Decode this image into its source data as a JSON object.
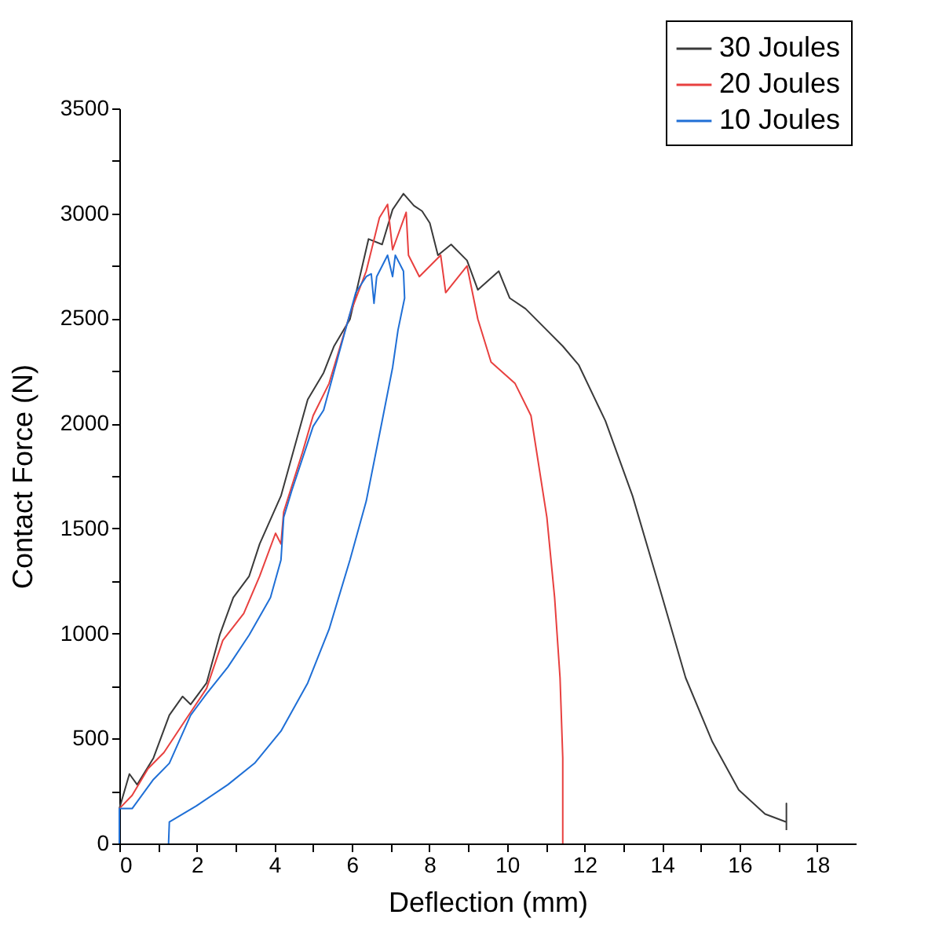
{
  "chart_data": {
    "type": "line",
    "xlabel": "Deflection (mm)",
    "ylabel": "Contact Force (N)",
    "xlim": [
      0,
      19
    ],
    "ylim": [
      0,
      3500
    ],
    "xticks": [
      0,
      {
        "value": 1,
        "label": null
      },
      2,
      {
        "value": 3,
        "label": null
      },
      4,
      {
        "value": 5,
        "label": null
      },
      6,
      {
        "value": 7,
        "label": null
      },
      8,
      {
        "value": 9,
        "label": null
      },
      10,
      {
        "value": 11,
        "label": null
      },
      12,
      {
        "value": 13,
        "label": null
      },
      14,
      {
        "value": 15,
        "label": null
      },
      16,
      {
        "value": 17,
        "label": null
      },
      18
    ],
    "yticks": [
      0,
      {
        "value": 250,
        "label": null
      },
      500,
      {
        "value": 750,
        "label": null
      },
      1000,
      {
        "value": 1250,
        "label": null
      },
      1500,
      {
        "value": 1750,
        "label": null
      },
      2000,
      {
        "value": 2250,
        "label": null
      },
      2500,
      {
        "value": 2750,
        "label": null
      },
      3000,
      {
        "value": 3250,
        "label": null
      },
      3500
    ],
    "grid": false,
    "legend": "top right",
    "marker": "none",
    "line_style": "solid",
    "series": [
      {
        "name": "30 Joules",
        "color": "#3a3a3a",
        "x": [
          0,
          0,
          0.26,
          0.46,
          0.88,
          1.29,
          1.63,
          1.84,
          2.25,
          2.59,
          2.94,
          3.35,
          3.62,
          4.17,
          4.86,
          5.27,
          5.54,
          5.95,
          6.43,
          6.78,
          7.05,
          7.33,
          7.6,
          7.81,
          8.01,
          8.22,
          8.56,
          8.97,
          9.25,
          9.79,
          10.07,
          10.48,
          11.03,
          11.44,
          11.85,
          12.54,
          13.24,
          13.93,
          14.61,
          15.3,
          15.98,
          16.66,
          17.21,
          17.21,
          17.21
        ],
        "values": [
          0,
          166,
          331,
          280,
          407,
          611,
          700,
          662,
          764,
          993,
          1171,
          1273,
          1426,
          1655,
          2114,
          2241,
          2368,
          2496,
          2878,
          2852,
          3018,
          3094,
          3037,
          3011,
          2954,
          2801,
          2852,
          2776,
          2636,
          2725,
          2597,
          2546,
          2444,
          2368,
          2279,
          2012,
          1655,
          1222,
          789,
          484,
          255,
          140,
          102,
          191,
          64
        ]
      },
      {
        "name": "20 Joules",
        "color": "#e8403f",
        "x": [
          0,
          0,
          0.33,
          0.74,
          1.15,
          1.7,
          2.25,
          2.67,
          3.21,
          3.62,
          4.03,
          4.17,
          4.24,
          4.72,
          5.0,
          5.41,
          5.95,
          6.37,
          6.71,
          6.92,
          7.05,
          7.4,
          7.46,
          7.74,
          8.29,
          8.42,
          8.97,
          9.25,
          9.59,
          10.21,
          10.62,
          11.03,
          11.23,
          11.37,
          11.44,
          11.44
        ],
        "values": [
          0,
          166,
          229,
          356,
          433,
          586,
          738,
          967,
          1095,
          1273,
          1477,
          1426,
          1579,
          1859,
          2037,
          2190,
          2521,
          2725,
          2979,
          3043,
          2827,
          3005,
          2801,
          2699,
          2801,
          2623,
          2750,
          2496,
          2292,
          2190,
          2037,
          1553,
          1171,
          789,
          407,
          0
        ]
      },
      {
        "name": "10 Joules",
        "color": "#1f6fd6",
        "x": [
          0,
          0,
          0.33,
          0.88,
          1.29,
          1.84,
          2.25,
          2.8,
          3.35,
          3.9,
          4.17,
          4.24,
          4.45,
          5.0,
          5.27,
          5.68,
          6.1,
          6.37,
          6.5,
          6.57,
          6.64,
          6.92,
          7.05,
          7.12,
          7.33,
          7.36,
          7.19,
          7.05,
          6.78,
          6.37,
          5.95,
          5.41,
          4.86,
          4.17,
          3.49,
          2.8,
          1.98,
          1.29,
          1.27
        ],
        "values": [
          0,
          166,
          166,
          305,
          382,
          611,
          713,
          840,
          993,
          1171,
          1350,
          1553,
          1681,
          1986,
          2063,
          2343,
          2623,
          2699,
          2712,
          2572,
          2699,
          2801,
          2699,
          2801,
          2725,
          2597,
          2445,
          2266,
          2012,
          1630,
          1350,
          1019,
          764,
          535,
          382,
          280,
          178,
          102,
          0
        ]
      }
    ]
  }
}
